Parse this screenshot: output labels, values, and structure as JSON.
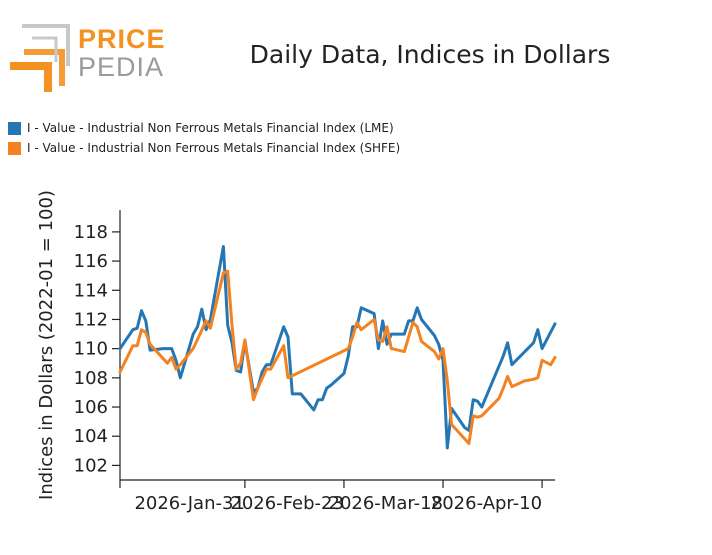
{
  "logo": {
    "word1": "PRICE",
    "word2": "PEDIA",
    "accent_color": "#f39220",
    "gray_color": "#9a9a9a"
  },
  "chart_data": {
    "type": "line",
    "title": "Daily Data, Indices in Dollars",
    "xlabel": "",
    "ylabel": "Indices in Dollars (2022-01 = 100)",
    "ylim": [
      101,
      119.5
    ],
    "yticks": [
      102,
      104,
      106,
      108,
      110,
      112,
      114,
      116,
      118
    ],
    "xlim": [
      "2026-01-02",
      "2026-04-13"
    ],
    "xticks": [
      "2026-Jan-31",
      "2026-Feb-23",
      "2026-Mar-18",
      "2026-Apr-10"
    ],
    "grid": false,
    "legend_position": "top-left",
    "series": [
      {
        "name": "I - Value - Industrial Non Ferrous Metals Financial Index (LME)",
        "color": "#2477b4",
        "points": [
          [
            "2026-01-02",
            110.0
          ],
          [
            "2026-01-05",
            111.3
          ],
          [
            "2026-01-06",
            111.4
          ],
          [
            "2026-01-07",
            112.6
          ],
          [
            "2026-01-08",
            111.9
          ],
          [
            "2026-01-09",
            109.9
          ],
          [
            "2026-01-12",
            110.0
          ],
          [
            "2026-01-13",
            110.0
          ],
          [
            "2026-01-14",
            110.0
          ],
          [
            "2026-01-15",
            109.2
          ],
          [
            "2026-01-16",
            108.0
          ],
          [
            "2026-01-19",
            111.0
          ],
          [
            "2026-01-20",
            111.5
          ],
          [
            "2026-01-21",
            112.7
          ],
          [
            "2026-01-22",
            111.3
          ],
          [
            "2026-01-23",
            112.0
          ],
          [
            "2026-01-26",
            117.0
          ],
          [
            "2026-01-27",
            111.6
          ],
          [
            "2026-01-28",
            110.4
          ],
          [
            "2026-01-29",
            108.5
          ],
          [
            "2026-01-30",
            108.4
          ],
          [
            "2026-01-31",
            110.5
          ],
          [
            "2026-02-02",
            107.0
          ],
          [
            "2026-02-03",
            107.3
          ],
          [
            "2026-02-04",
            108.4
          ],
          [
            "2026-02-05",
            108.9
          ],
          [
            "2026-02-06",
            108.9
          ],
          [
            "2026-02-09",
            111.5
          ],
          [
            "2026-02-10",
            110.8
          ],
          [
            "2026-02-11",
            106.9
          ],
          [
            "2026-02-12",
            106.9
          ],
          [
            "2026-02-13",
            106.9
          ],
          [
            "2026-02-16",
            105.8
          ],
          [
            "2026-02-17",
            106.5
          ],
          [
            "2026-02-18",
            106.5
          ],
          [
            "2026-02-19",
            107.3
          ],
          [
            "2026-02-20",
            107.5
          ],
          [
            "2026-02-23",
            108.3
          ],
          [
            "2026-02-24",
            109.5
          ],
          [
            "2026-02-25",
            111.5
          ],
          [
            "2026-02-26",
            111.5
          ],
          [
            "2026-02-27",
            112.8
          ],
          [
            "2026-03-02",
            112.4
          ],
          [
            "2026-03-03",
            110.0
          ],
          [
            "2026-03-04",
            111.9
          ],
          [
            "2026-03-05",
            110.3
          ],
          [
            "2026-03-06",
            111.0
          ],
          [
            "2026-03-09",
            111.0
          ],
          [
            "2026-03-10",
            111.9
          ],
          [
            "2026-03-11",
            111.9
          ],
          [
            "2026-03-12",
            112.8
          ],
          [
            "2026-03-13",
            112.0
          ],
          [
            "2026-03-16",
            110.9
          ],
          [
            "2026-03-17",
            110.3
          ],
          [
            "2026-03-18",
            109.2
          ],
          [
            "2026-03-19",
            103.2
          ],
          [
            "2026-03-20",
            105.9
          ],
          [
            "2026-03-23",
            104.6
          ],
          [
            "2026-03-24",
            104.4
          ],
          [
            "2026-03-25",
            106.5
          ],
          [
            "2026-03-26",
            106.4
          ],
          [
            "2026-03-27",
            106.0
          ],
          [
            "2026-04-01",
            109.5
          ],
          [
            "2026-04-02",
            110.4
          ],
          [
            "2026-04-03",
            108.9
          ],
          [
            "2026-04-08",
            110.4
          ],
          [
            "2026-04-09",
            111.3
          ],
          [
            "2026-04-10",
            110.0
          ],
          [
            "2026-04-13",
            111.7
          ]
        ]
      },
      {
        "name": "I - Value - Industrial Non Ferrous Metals Financial Index (SHFE)",
        "color": "#f58220",
        "points": [
          [
            "2026-01-02",
            108.4
          ],
          [
            "2026-01-05",
            110.2
          ],
          [
            "2026-01-06",
            110.2
          ],
          [
            "2026-01-07",
            111.3
          ],
          [
            "2026-01-08",
            111.1
          ],
          [
            "2026-01-09",
            110.3
          ],
          [
            "2026-01-13",
            109.0
          ],
          [
            "2026-01-14",
            109.4
          ],
          [
            "2026-01-15",
            108.6
          ],
          [
            "2026-01-16",
            108.9
          ],
          [
            "2026-01-19",
            110.0
          ],
          [
            "2026-01-22",
            111.9
          ],
          [
            "2026-01-23",
            111.4
          ],
          [
            "2026-01-26",
            115.2
          ],
          [
            "2026-01-27",
            115.3
          ],
          [
            "2026-01-28",
            111.6
          ],
          [
            "2026-01-29",
            108.6
          ],
          [
            "2026-01-30",
            109.0
          ],
          [
            "2026-01-31",
            110.6
          ],
          [
            "2026-02-02",
            106.5
          ],
          [
            "2026-02-03",
            107.3
          ],
          [
            "2026-02-05",
            108.6
          ],
          [
            "2026-02-06",
            108.6
          ],
          [
            "2026-02-09",
            110.2
          ],
          [
            "2026-02-10",
            108.0
          ],
          [
            "2026-02-24",
            110.0
          ],
          [
            "2026-02-25",
            110.8
          ],
          [
            "2026-02-26",
            111.8
          ],
          [
            "2026-02-27",
            111.3
          ],
          [
            "2026-03-02",
            112.0
          ],
          [
            "2026-03-03",
            110.6
          ],
          [
            "2026-03-04",
            110.5
          ],
          [
            "2026-03-05",
            111.5
          ],
          [
            "2026-03-06",
            110.0
          ],
          [
            "2026-03-09",
            109.8
          ],
          [
            "2026-03-11",
            111.8
          ],
          [
            "2026-03-12",
            111.5
          ],
          [
            "2026-03-13",
            110.5
          ],
          [
            "2026-03-16",
            109.8
          ],
          [
            "2026-03-17",
            109.3
          ],
          [
            "2026-03-18",
            110.0
          ],
          [
            "2026-03-19",
            107.8
          ],
          [
            "2026-03-20",
            104.8
          ],
          [
            "2026-03-24",
            103.5
          ],
          [
            "2026-03-25",
            105.4
          ],
          [
            "2026-03-26",
            105.3
          ],
          [
            "2026-03-27",
            105.4
          ],
          [
            "2026-03-31",
            106.6
          ],
          [
            "2026-04-01",
            107.3
          ],
          [
            "2026-04-02",
            108.1
          ],
          [
            "2026-04-03",
            107.4
          ],
          [
            "2026-04-06",
            107.8
          ],
          [
            "2026-04-08",
            107.9
          ],
          [
            "2026-04-09",
            108.0
          ],
          [
            "2026-04-10",
            109.2
          ],
          [
            "2026-04-12",
            108.9
          ],
          [
            "2026-04-13",
            109.4
          ]
        ]
      }
    ]
  }
}
